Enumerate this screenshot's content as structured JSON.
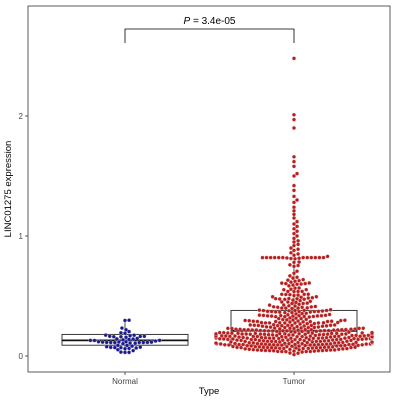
{
  "chart_data": {
    "type": "box-beeswarm",
    "title": "",
    "xlabel": "Type",
    "ylabel": "LINC01275 expression",
    "categories": [
      "Normal",
      "Tumor"
    ],
    "ylim": [
      -0.15,
      2.65
    ],
    "yticks": [
      0,
      1,
      2
    ],
    "colors": {
      "Normal": "#1a1a8c",
      "Tumor": "#b81e1e"
    },
    "annotation": {
      "label": "P = 3.4e-05",
      "p_symbol": "P",
      "p_rest": " = 3.4e-05",
      "between": [
        "Normal",
        "Tumor"
      ]
    },
    "boxes": [
      {
        "name": "Normal",
        "q1": 0.09,
        "median": 0.13,
        "q3": 0.18,
        "whisker_low": 0.03,
        "whisker_high": 0.31
      },
      {
        "name": "Tumor",
        "q1": 0.09,
        "median": 0.21,
        "q3": 0.38,
        "whisker_low": 0.0,
        "whisker_high": 0.82
      }
    ],
    "series": [
      {
        "name": "Normal",
        "n": 55,
        "values_summary": "0.03–0.35",
        "outliers": []
      },
      {
        "name": "Tumor",
        "n": 480,
        "values_summary": "0.0–2.48",
        "outliers": [
          2.48,
          2.01,
          1.97,
          1.9,
          1.66,
          1.62,
          1.58,
          1.52,
          1.5,
          1.42,
          1.38,
          1.33,
          1.3,
          1.28,
          1.24,
          1.21,
          1.18,
          1.15,
          1.12,
          1.1,
          1.08,
          1.06,
          1.04,
          1.02,
          1.0,
          0.98,
          0.96,
          0.95,
          0.93,
          0.92,
          0.9,
          0.89,
          0.88,
          0.86,
          0.85,
          0.84,
          0.83
        ]
      }
    ],
    "grid": false,
    "legend": "none"
  }
}
